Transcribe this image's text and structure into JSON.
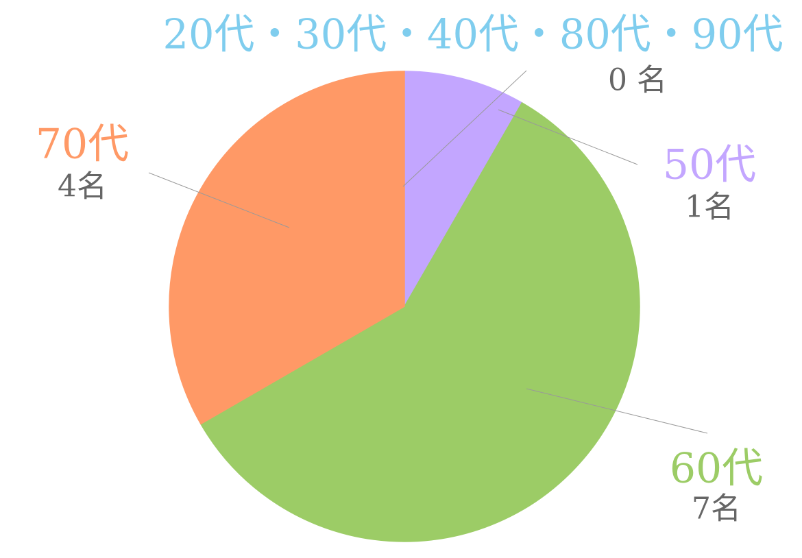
{
  "chart_data": {
    "type": "pie",
    "categories": [
      "20代・30代・40代・80代・90代",
      "50代",
      "60代",
      "70代"
    ],
    "values": [
      0,
      1,
      7,
      4
    ],
    "value_labels": [
      "0 名",
      "1名",
      "7名",
      "4名"
    ],
    "colors": [
      "#7fcdee",
      "#c3a6ff",
      "#9ccc66",
      "#ff9966"
    ]
  }
}
